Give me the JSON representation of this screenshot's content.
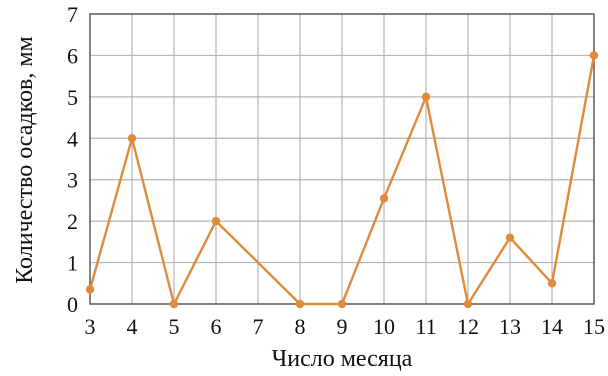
{
  "chart_data": {
    "type": "line",
    "title": "",
    "xlabel": "Число месяца",
    "ylabel": "Количество осадков, мм",
    "x_ticks": [
      "3",
      "4",
      "5",
      "6",
      "7",
      "8",
      "9",
      "10",
      "11",
      "12",
      "13",
      "14",
      "15"
    ],
    "y_ticks": [
      "0",
      "1",
      "2",
      "3",
      "4",
      "5",
      "6",
      "7"
    ],
    "xlim": [
      3,
      15
    ],
    "ylim": [
      0,
      7
    ],
    "grid": true,
    "series": [
      {
        "color": "#e08a3c",
        "x": [
          3,
          4,
          5,
          6,
          8,
          9,
          10,
          11,
          12,
          13,
          14,
          15
        ],
        "y": [
          0.35,
          4.0,
          0.0,
          2.0,
          0.0,
          0.0,
          2.55,
          5.0,
          0.0,
          1.6,
          0.5,
          6.0
        ]
      }
    ]
  }
}
